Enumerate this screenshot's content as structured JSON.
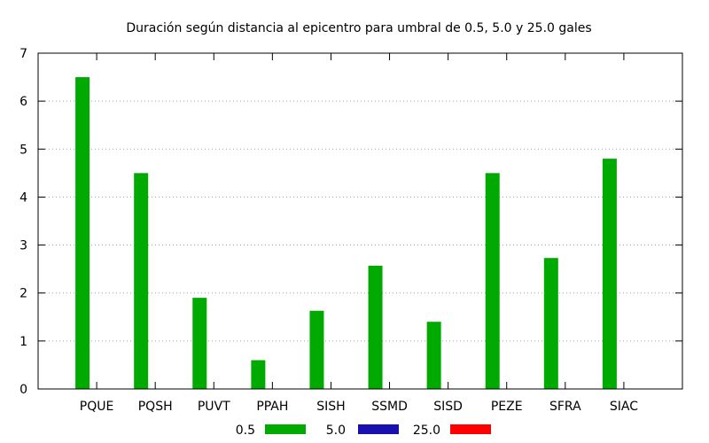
{
  "chart_data": {
    "type": "bar",
    "title": "Duración según distancia al epicentro para umbral de 0.5, 5.0 y 25.0 gales",
    "xlabel": "",
    "ylabel": "",
    "categories": [
      "PQUE",
      "PQSH",
      "PUVT",
      "PPAH",
      "SISH",
      "SSMD",
      "SISD",
      "PEZE",
      "SFRA",
      "SIAC"
    ],
    "series": [
      {
        "name": "0.5",
        "color": "#00aa00",
        "values": [
          6.5,
          4.5,
          1.9,
          0.6,
          1.63,
          2.57,
          1.4,
          4.5,
          2.73,
          4.8
        ]
      },
      {
        "name": "5.0",
        "color": "#1a10b0",
        "values": [
          0,
          0,
          0,
          0,
          0,
          0,
          0,
          0,
          0,
          0
        ]
      },
      {
        "name": "25.0",
        "color": "#ff0000",
        "values": [
          0,
          0,
          0,
          0,
          0,
          0,
          0,
          0,
          0,
          0
        ]
      }
    ],
    "ylim": [
      0,
      7
    ],
    "yticks": [
      0,
      1,
      2,
      3,
      4,
      5,
      6,
      7
    ],
    "grid": true,
    "legend_position": "bottom"
  }
}
